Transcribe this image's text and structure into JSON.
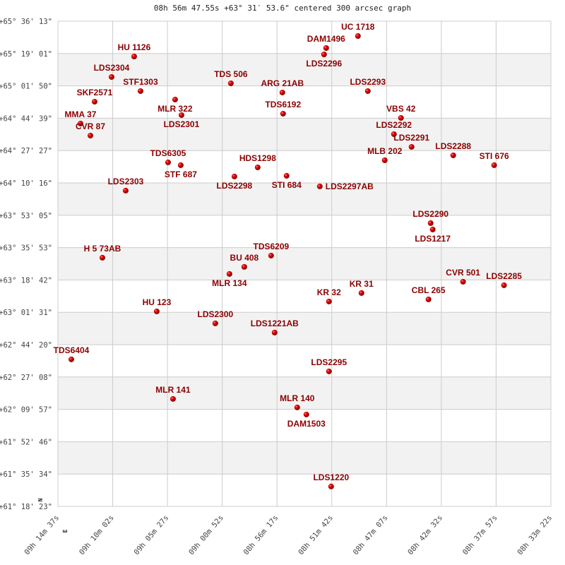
{
  "title": "08h 56m 47.55s +63° 31′ 53.6\" centered 300 arcsec graph",
  "compass": {
    "north": "N",
    "east": "E"
  },
  "colors": {
    "label": "#8b0000",
    "point": "#dd0000",
    "band": "#f2f2f2",
    "grid": "#cccccc"
  },
  "chart_data": {
    "type": "scatter",
    "title": "08h 56m 47.55s +63° 31′ 53.6\" centered 300 arcsec graph",
    "x_axis": {
      "quantity": "right ascension (hours)",
      "range": [
        9.24361,
        8.55611
      ],
      "reversed": true,
      "tick_labels": [
        "09h 14m 37s",
        "09h 10m 02s",
        "09h 05m 27s",
        "09h 00m 52s",
        "08h 56m 17s",
        "08h 51m 42s",
        "08h 47m 07s",
        "08h 42m 32s",
        "08h 37m 57s",
        "08h 33m 22s"
      ]
    },
    "y_axis": {
      "quantity": "declination (degrees)",
      "range": [
        61.30639,
        65.60361
      ],
      "tick_labels": [
        "+65° 36' 13\"",
        "+65° 19' 01\"",
        "+65° 01' 50\"",
        "+64° 44' 39\"",
        "+64° 27' 27\"",
        "+64° 10' 16\"",
        "+63° 53' 05\"",
        "+63° 35' 53\"",
        "+63° 18' 42\"",
        "+63° 01' 31\"",
        "+62° 44' 20\"",
        "+62° 27' 08\"",
        "+62° 09' 57\"",
        "+61° 52' 46\"",
        "+61° 35' 34\"",
        "+61° 18' 23\""
      ]
    },
    "grid": true,
    "banded_rows": true,
    "points": [
      {
        "name": "UC 1718",
        "ra": 8.8252,
        "dec": 65.4723
      },
      {
        "name": "DAM1496",
        "ra": 8.8695,
        "dec": 65.366
      },
      {
        "name": "LDS2296",
        "ra": 8.8725,
        "dec": 65.3097
      },
      {
        "name": "HU 1126",
        "ra": 9.1373,
        "dec": 65.2909
      },
      {
        "name": "LDS2304",
        "ra": 9.1688,
        "dec": 65.1096
      },
      {
        "name": "TDS 506",
        "ra": 9.0024,
        "dec": 65.0533
      },
      {
        "name": "STF1303",
        "ra": 9.1284,
        "dec": 64.9846
      },
      {
        "name": "ARG  21AB",
        "ra": 8.9306,
        "dec": 64.972
      },
      {
        "name": "LDS2293",
        "ra": 8.8114,
        "dec": 64.9846
      },
      {
        "name": "SKF2571",
        "ra": 9.1924,
        "dec": 64.8908
      },
      {
        "name": "MLR 322",
        "ra": 9.0802,
        "dec": 64.9095
      },
      {
        "name": "LDS2301",
        "ra": 9.0713,
        "dec": 64.772
      },
      {
        "name": "TDS6192",
        "ra": 8.9296,
        "dec": 64.7845
      },
      {
        "name": "VBS  42",
        "ra": 8.7652,
        "dec": 64.7469
      },
      {
        "name": "MMA  37",
        "ra": 9.2121,
        "dec": 64.6969
      },
      {
        "name": "CVR  87",
        "ra": 9.1983,
        "dec": 64.5906
      },
      {
        "name": "LDS2292",
        "ra": 8.775,
        "dec": 64.6031
      },
      {
        "name": "LDS2291",
        "ra": 8.7504,
        "dec": 64.4906
      },
      {
        "name": "LDS2288",
        "ra": 8.6923,
        "dec": 64.4155
      },
      {
        "name": "STI 676",
        "ra": 8.6352,
        "dec": 64.328
      },
      {
        "name": "MLB 202",
        "ra": 8.7878,
        "dec": 64.3718
      },
      {
        "name": "TDS6305",
        "ra": 9.09,
        "dec": 64.353
      },
      {
        "name": "STF 687",
        "ra": 9.0723,
        "dec": 64.328
      },
      {
        "name": "HDS1298",
        "ra": 8.965,
        "dec": 64.3092
      },
      {
        "name": "LDS2298",
        "ra": 8.9975,
        "dec": 64.2279
      },
      {
        "name": "STI 684",
        "ra": 8.9247,
        "dec": 64.2342
      },
      {
        "name": "LDS2297AB",
        "ra": 8.8784,
        "dec": 64.1404
      },
      {
        "name": "LDS2303",
        "ra": 9.1491,
        "dec": 64.1029
      },
      {
        "name": "LDS2290",
        "ra": 8.7238,
        "dec": 63.8152
      },
      {
        "name": "LDS1217",
        "ra": 8.7209,
        "dec": 63.759
      },
      {
        "name": "H 5  73AB",
        "ra": 9.1816,
        "dec": 63.5088
      },
      {
        "name": "TDS6209",
        "ra": 8.9463,
        "dec": 63.5276
      },
      {
        "name": "BU  408",
        "ra": 8.9837,
        "dec": 63.4276
      },
      {
        "name": "MLR 134",
        "ra": 9.0044,
        "dec": 63.365
      },
      {
        "name": "KR   31",
        "ra": 8.8203,
        "dec": 63.1962
      },
      {
        "name": "KR   32",
        "ra": 8.8656,
        "dec": 63.1212
      },
      {
        "name": "CVR 501",
        "ra": 8.6786,
        "dec": 63.2962
      },
      {
        "name": "LDS2285",
        "ra": 8.6215,
        "dec": 63.265
      },
      {
        "name": "CBL 265",
        "ra": 8.7268,
        "dec": 63.1399
      },
      {
        "name": "HU  123",
        "ra": 9.1058,
        "dec": 63.0336
      },
      {
        "name": "LDS2300",
        "ra": 9.0241,
        "dec": 62.9273
      },
      {
        "name": "LDS1221AB",
        "ra": 8.9414,
        "dec": 62.846
      },
      {
        "name": "TDS6404",
        "ra": 9.2249,
        "dec": 62.6084
      },
      {
        "name": "LDS2295",
        "ra": 8.8656,
        "dec": 62.5021
      },
      {
        "name": "MLR 141",
        "ra": 9.0831,
        "dec": 62.2582
      },
      {
        "name": "MLR 140",
        "ra": 8.9099,
        "dec": 62.1832
      },
      {
        "name": "DAM1503",
        "ra": 8.8971,
        "dec": 62.1207
      },
      {
        "name": "LDS1220",
        "ra": 8.8626,
        "dec": 61.4829
      }
    ]
  }
}
